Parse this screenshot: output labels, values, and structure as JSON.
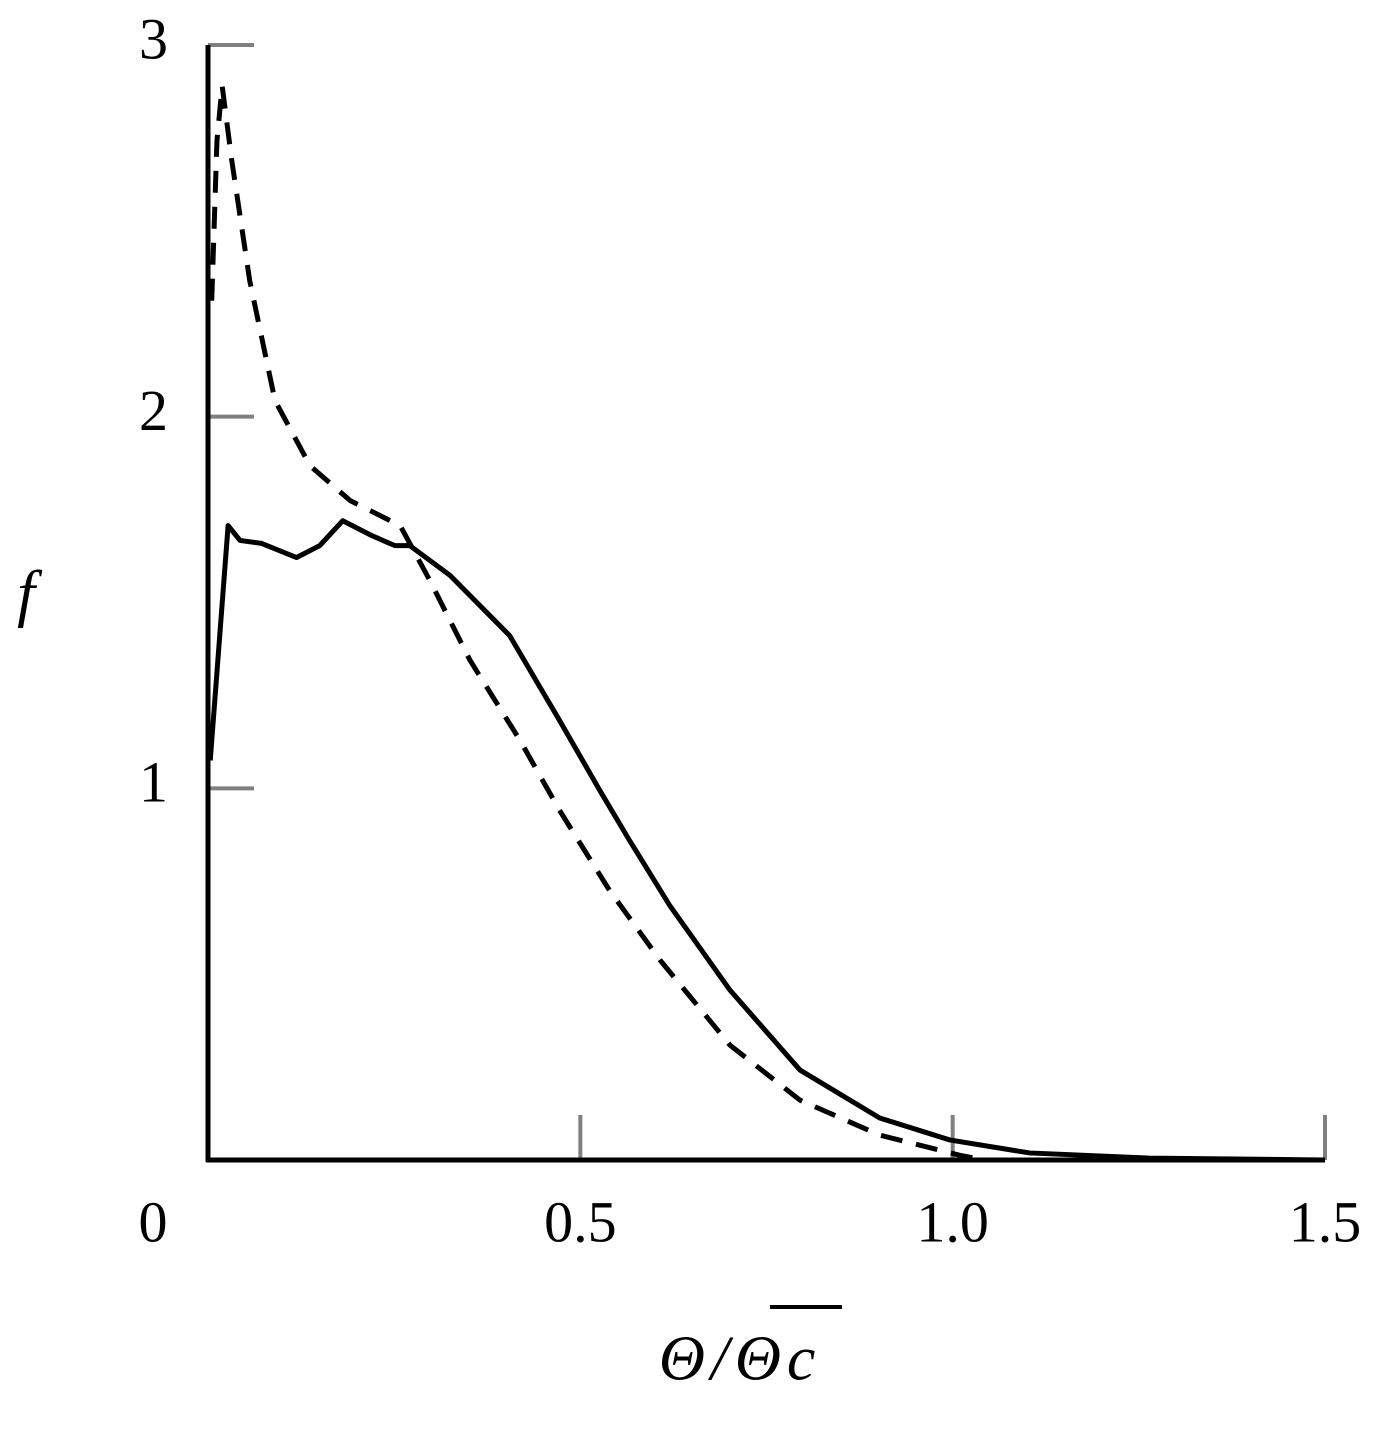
{
  "chart_data": {
    "type": "line",
    "x_label": "Θ/Θc",
    "y_label": "f",
    "xlim": [
      0,
      1.5
    ],
    "ylim": [
      0,
      3
    ],
    "xticks": [
      0,
      0.5,
      {
        "value": 1,
        "label": "1.0"
      },
      1.5
    ],
    "yticks": [
      1,
      2,
      3
    ],
    "series": [
      {
        "color": "#000000",
        "style": "solid",
        "x": [
          0.003,
          0.027,
          0.043,
          0.072,
          0.119,
          0.15,
          0.181,
          0.22,
          0.251,
          0.271,
          0.325,
          0.405,
          0.472,
          0.526,
          0.566,
          0.62,
          0.701,
          0.795,
          0.902,
          0.996,
          1.103,
          1.264,
          1.5
        ],
        "values": [
          1.075,
          1.707,
          1.667,
          1.659,
          1.621,
          1.653,
          1.72,
          1.68,
          1.653,
          1.653,
          1.573,
          1.411,
          1.183,
          0.995,
          0.86,
          0.685,
          0.457,
          0.242,
          0.113,
          0.054,
          0.019,
          0.005,
          0
        ]
      },
      {
        "color": "#000000",
        "style": "dashed",
        "x": [
          0.005,
          0.012,
          0.019,
          0.032,
          0.056,
          0.09,
          0.137,
          0.191,
          0.258,
          0.298,
          0.352,
          0.419,
          0.472,
          0.539,
          0.607,
          0.701,
          0.795,
          0.902,
          1.009,
          1.043
        ],
        "values": [
          2.312,
          2.742,
          2.89,
          2.688,
          2.366,
          2.043,
          1.868,
          1.774,
          1.707,
          1.559,
          1.344,
          1.129,
          0.941,
          0.726,
          0.538,
          0.309,
          0.161,
          0.067,
          0.013,
          0
        ]
      }
    ]
  }
}
